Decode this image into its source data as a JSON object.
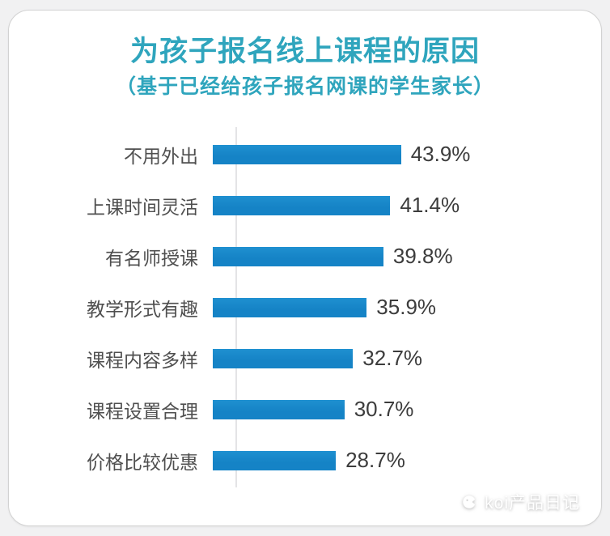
{
  "title": "为孩子报名线上课程的原因",
  "subtitle": "（基于已经给孩子报名网课的学生家长）",
  "colors": {
    "title": "#2FA5BD",
    "bar": "#1583C6",
    "background": "#F1F1F2",
    "card": "#FFFFFF",
    "label": "#4F4F4F",
    "value": "#3C3C3C",
    "axis": "#E4E4E6"
  },
  "watermark": {
    "icon": "koi-fish-icon",
    "text": "koi产品日记"
  },
  "chart_data": {
    "type": "bar",
    "orientation": "horizontal",
    "title": "为孩子报名线上课程的原因",
    "subtitle": "（基于已经给孩子报名网课的学生家长）",
    "categories": [
      "不用外出",
      "上课时间灵活",
      "有名师授课",
      "教学形式有趣",
      "课程内容多样",
      "课程设置合理",
      "价格比较优惠"
    ],
    "values": [
      43.9,
      41.4,
      39.8,
      35.9,
      32.7,
      30.7,
      28.7
    ],
    "value_labels": [
      "43.9%",
      "41.4%",
      "39.8%",
      "35.9%",
      "32.7%",
      "30.7%",
      "28.7%"
    ],
    "xlabel": "",
    "ylabel": "",
    "xlim": [
      0,
      50
    ],
    "grid": false,
    "legend": false,
    "data_labels_position": "right-of-bar"
  }
}
